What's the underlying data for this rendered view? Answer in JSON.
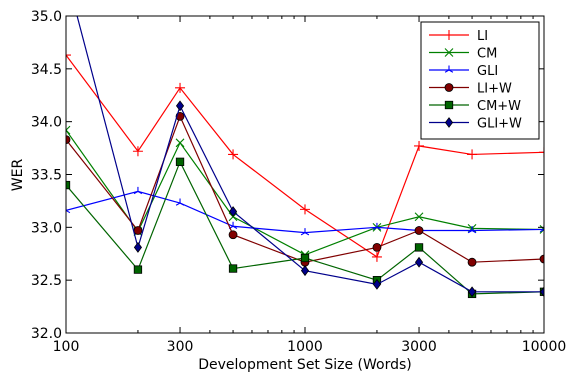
{
  "chart_data": {
    "type": "line",
    "title": "",
    "xlabel": "Development Set Size (Words)",
    "ylabel": "WER",
    "xscale": "log",
    "xlim": [
      100,
      10000
    ],
    "ylim": [
      32.0,
      35.0
    ],
    "xticks": [
      100,
      300,
      1000,
      3000,
      10000
    ],
    "xtick_labels": [
      "100",
      "300",
      "1000",
      "3000",
      "10000"
    ],
    "yticks": [
      32.0,
      32.5,
      33.0,
      33.5,
      34.0,
      34.5,
      35.0
    ],
    "ytick_labels": [
      "32.0",
      "32.5",
      "33.0",
      "33.5",
      "34.0",
      "34.5",
      "35.0"
    ],
    "grid": false,
    "legend_position": "top-right",
    "x": [
      100,
      200,
      300,
      500,
      1000,
      2000,
      3000,
      5000,
      10000
    ],
    "series": [
      {
        "name": "LI",
        "color": "#ff0000",
        "marker": "plus",
        "values": [
          34.63,
          33.72,
          34.32,
          33.69,
          33.17,
          32.72,
          33.77,
          33.69,
          33.71
        ]
      },
      {
        "name": "CM",
        "color": "#008000",
        "marker": "x",
        "values": [
          33.92,
          32.96,
          33.8,
          33.1,
          32.74,
          33.0,
          33.1,
          32.99,
          32.98
        ]
      },
      {
        "name": "GLI",
        "color": "#0000ff",
        "marker": "tri",
        "values": [
          33.16,
          33.34,
          33.23,
          33.01,
          32.95,
          33.0,
          32.97,
          32.97,
          32.98
        ]
      },
      {
        "name": "LI+W",
        "color": "#800000",
        "marker": "circle",
        "values": [
          33.83,
          32.97,
          34.05,
          32.93,
          32.67,
          32.81,
          32.97,
          32.67,
          32.7
        ]
      },
      {
        "name": "CM+W",
        "color": "#006400",
        "marker": "square",
        "values": [
          33.4,
          32.6,
          33.62,
          32.61,
          32.71,
          32.5,
          32.81,
          32.37,
          32.39
        ]
      },
      {
        "name": "GLI+W",
        "color": "#00008b",
        "marker": "diamond",
        "values": [
          35.4,
          32.81,
          34.15,
          33.15,
          32.59,
          32.46,
          32.67,
          32.39,
          32.39
        ]
      }
    ]
  }
}
